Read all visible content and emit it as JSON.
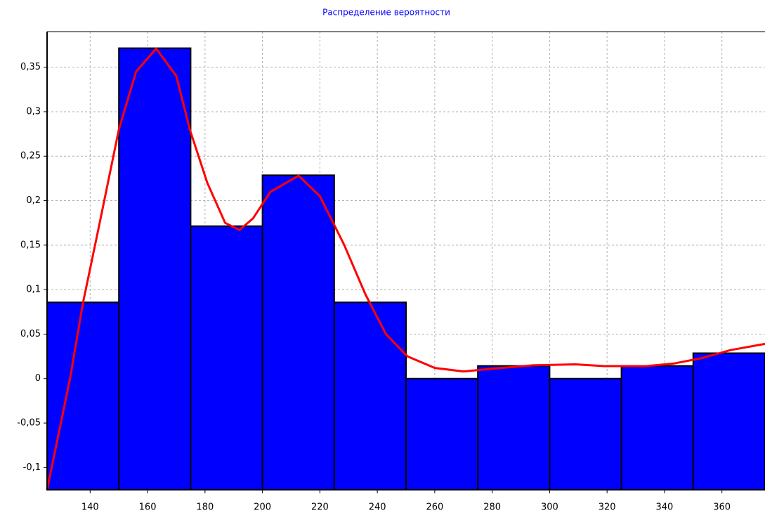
{
  "chart_data": {
    "type": "histogram",
    "title": "Распределение вероятности",
    "bins": [
      125,
      150,
      175,
      200,
      225,
      250,
      275,
      300,
      325,
      350,
      375
    ],
    "values": [
      0.0857,
      0.3714,
      0.1714,
      0.2286,
      0.0857,
      0,
      0.0143,
      0,
      0.0143,
      0.0286
    ],
    "color": "#0000ff",
    "curve": {
      "x": [
        125,
        133,
        137.5,
        143,
        150,
        156,
        163,
        170,
        174.7,
        180.8,
        187,
        192,
        196.7,
        202.8,
        212.6,
        220,
        228.5,
        235.8,
        243,
        250.5,
        260,
        270,
        279.8,
        294.5,
        309,
        319,
        333.7,
        343.4,
        353,
        363,
        375
      ],
      "values": [
        -0.125,
        0.0,
        0.085,
        0.17,
        0.28,
        0.345,
        0.371,
        0.34,
        0.28,
        0.22,
        0.175,
        0.167,
        0.18,
        0.21,
        0.228,
        0.205,
        0.15,
        0.095,
        0.05,
        0.025,
        0.012,
        0.008,
        0.011,
        0.015,
        0.016,
        0.014,
        0.014,
        0.017,
        0.023,
        0.032,
        0.039
      ],
      "color": "#ff0000"
    },
    "xlim": [
      125,
      375
    ],
    "ylim": [
      -0.125,
      0.39
    ],
    "xticks": [
      140,
      160,
      180,
      200,
      220,
      240,
      260,
      280,
      300,
      320,
      340,
      360
    ],
    "yticks": [
      {
        "value": -0.1,
        "label": "-0,1"
      },
      {
        "value": -0.05,
        "label": "-0,05"
      },
      0,
      {
        "value": 0.05,
        "label": "0,05"
      },
      {
        "value": 0.1,
        "label": "0,1"
      },
      {
        "value": 0.15,
        "label": "0,15"
      },
      {
        "value": 0.2,
        "label": "0,2"
      },
      {
        "value": 0.25,
        "label": "0,25"
      },
      {
        "value": 0.3,
        "label": "0,3"
      },
      {
        "value": 0.35,
        "label": "0,35"
      }
    ],
    "grid": true
  }
}
